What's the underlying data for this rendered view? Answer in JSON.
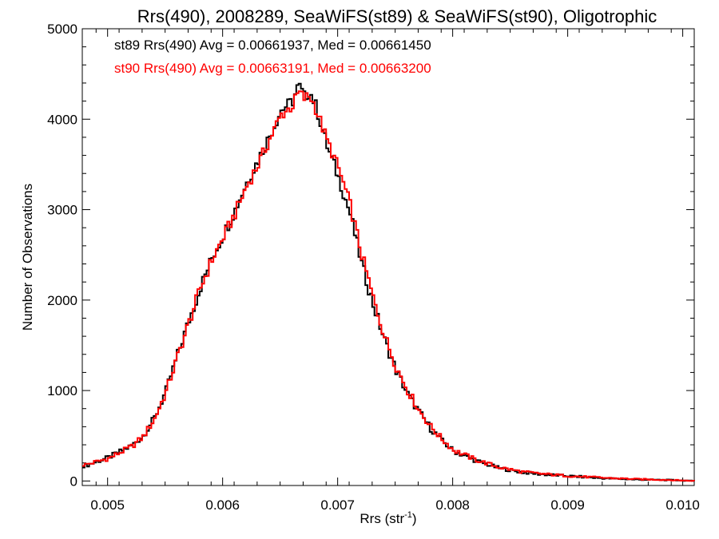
{
  "chart_data": {
    "type": "line",
    "title": "Rrs(490), 2008289, SeaWiFS(st89) & SeaWiFS(st90), Oligotrophic",
    "xlabel_base": "Rrs (str",
    "xlabel_sup": "-1",
    "xlabel_close": ")",
    "ylabel": "Number of Observations",
    "xlim": [
      0.00478,
      0.0101
    ],
    "ylim": [
      -50,
      5000
    ],
    "xticks": [
      0.005,
      0.006,
      0.007,
      0.008,
      0.009,
      0.01
    ],
    "xtick_labels": [
      "0.005",
      "0.006",
      "0.007",
      "0.008",
      "0.009",
      "0.010"
    ],
    "yticks": [
      0,
      1000,
      2000,
      3000,
      4000,
      5000
    ],
    "ytick_labels": [
      "0",
      "1000",
      "2000",
      "3000",
      "4000",
      "5000"
    ],
    "grid": false,
    "step": true,
    "series": [
      {
        "name": "st89",
        "color": "#000000",
        "legend_text": "st89 Rrs(490) Avg = 0.00661937, Med = 0.00661450",
        "x": [
          0.0048,
          0.005,
          0.0052,
          0.0053,
          0.0054,
          0.0055,
          0.0056,
          0.0057,
          0.0058,
          0.0059,
          0.006,
          0.0061,
          0.0062,
          0.0063,
          0.0064,
          0.0065,
          0.0066,
          0.00665,
          0.0067,
          0.00675,
          0.0068,
          0.0069,
          0.007,
          0.0071,
          0.0072,
          0.0073,
          0.0074,
          0.0075,
          0.0076,
          0.0077,
          0.0078,
          0.0079,
          0.008,
          0.0082,
          0.0084,
          0.0086,
          0.0088,
          0.009,
          0.0093,
          0.0096,
          0.0099,
          0.0101
        ],
        "y": [
          170,
          260,
          390,
          500,
          700,
          1000,
          1400,
          1780,
          2150,
          2470,
          2730,
          3000,
          3300,
          3550,
          3820,
          4100,
          4200,
          4380,
          4250,
          4300,
          4150,
          3700,
          3350,
          2950,
          2400,
          1950,
          1550,
          1220,
          960,
          760,
          580,
          440,
          330,
          220,
          140,
          95,
          70,
          55,
          30,
          15,
          10,
          0
        ]
      },
      {
        "name": "st90",
        "color": "#ff0000",
        "legend_text": "st90 Rrs(490) Avg = 0.00663191, Med = 0.00663200",
        "x": [
          0.0048,
          0.005,
          0.0052,
          0.0053,
          0.0054,
          0.0055,
          0.0056,
          0.0057,
          0.0058,
          0.0059,
          0.006,
          0.0061,
          0.0062,
          0.0063,
          0.0064,
          0.0065,
          0.0066,
          0.00665,
          0.0067,
          0.00675,
          0.0068,
          0.0069,
          0.007,
          0.0071,
          0.0072,
          0.0073,
          0.0074,
          0.0075,
          0.0076,
          0.0077,
          0.0078,
          0.0079,
          0.008,
          0.0082,
          0.0084,
          0.0086,
          0.0088,
          0.009,
          0.0093,
          0.0096,
          0.0099,
          0.0101
        ],
        "y": [
          180,
          250,
          380,
          490,
          690,
          990,
          1380,
          1760,
          2140,
          2450,
          2700,
          2960,
          3260,
          3500,
          3780,
          4050,
          4150,
          4300,
          4230,
          4260,
          4120,
          3760,
          3450,
          3050,
          2500,
          2020,
          1600,
          1260,
          1000,
          780,
          600,
          460,
          340,
          230,
          150,
          100,
          75,
          55,
          35,
          20,
          10,
          0
        ]
      }
    ]
  }
}
